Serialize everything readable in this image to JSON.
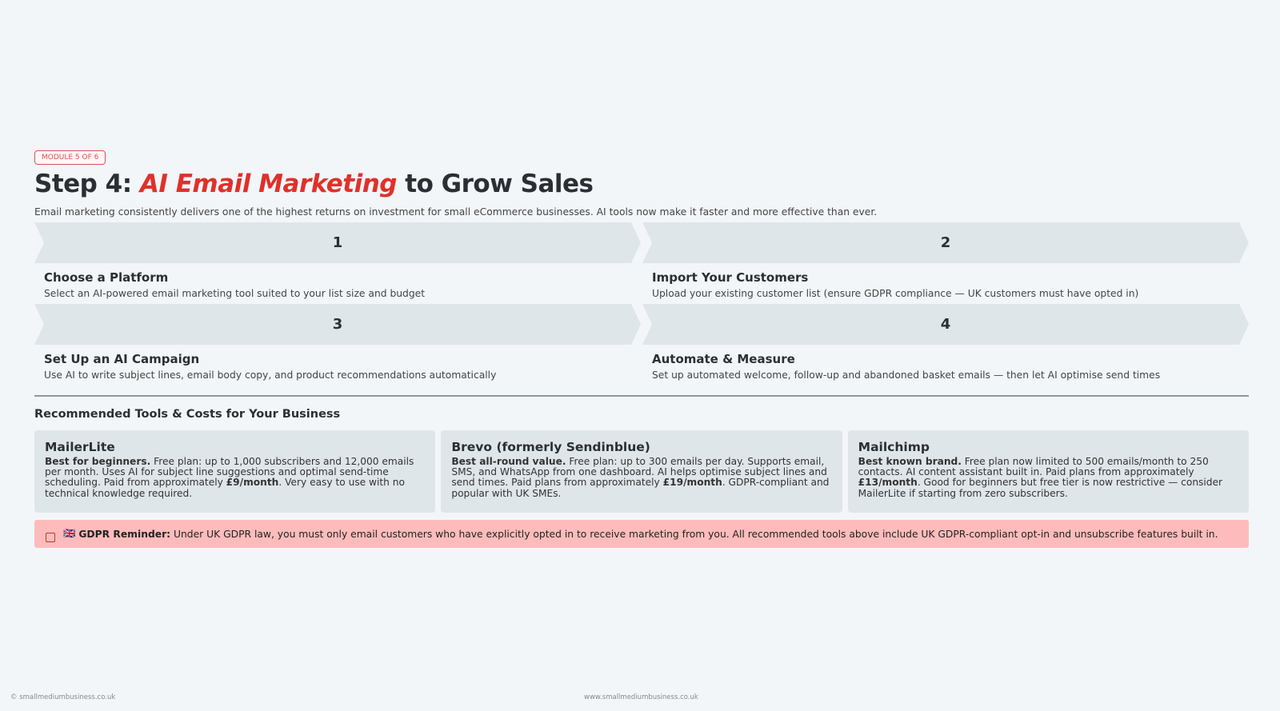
{
  "badge": "MODULE 5 OF 6",
  "title": {
    "prefix": "Step 4: ",
    "highlight": "AI Email Marketing",
    "suffix": " to Grow Sales"
  },
  "subtitle": "Email marketing consistently delivers one of the highest returns on investment for small eCommerce businesses. AI tools now make it faster and more effective than ever.",
  "steps": [
    {
      "number": "1",
      "title": "Choose a Platform",
      "desc": "Select an AI-powered email marketing tool suited to your list size and budget"
    },
    {
      "number": "2",
      "title": "Import Your Customers",
      "desc": "Upload your existing customer list (ensure GDPR compliance — UK customers must have opted in)"
    },
    {
      "number": "3",
      "title": "Set Up an AI Campaign",
      "desc": "Use AI to write subject lines, email body copy, and product recommendations automatically"
    },
    {
      "number": "4",
      "title": "Automate & Measure",
      "desc": "Set up automated welcome, follow-up and abandoned basket emails — then let AI optimise send times"
    }
  ],
  "tools_heading": "Recommended Tools & Costs for Your Business",
  "tools": [
    {
      "name": "MailerLite",
      "lead": "Best for beginners.",
      "text1": " Free plan: up to 1,000 subscribers and 12,000 emails per month. Uses AI for subject line suggestions and optimal send-time scheduling. Paid from approximately ",
      "price": "£9/month",
      "text2": ". Very easy to use with no technical knowledge required."
    },
    {
      "name": "Brevo (formerly Sendinblue)",
      "lead": "Best all-round value.",
      "text1": " Free plan: up to 300 emails per day. Supports email, SMS, and WhatsApp from one dashboard. AI helps optimise subject lines and send times. Paid plans from approximately ",
      "price": "£19/month",
      "text2": ". GDPR-compliant and popular with UK SMEs."
    },
    {
      "name": "Mailchimp",
      "lead": "Best known brand.",
      "text1": " Free plan now limited to 500 emails/month to 250 contacts. AI content assistant built in. Paid plans from approximately ",
      "price": "£13/month",
      "text2": ". Good for beginners but free tier is now restrictive — consider MailerLite if starting from zero subscribers."
    }
  ],
  "gdpr": {
    "flag": "🇬🇧",
    "label": "GDPR Reminder:",
    "text": " Under UK GDPR law, you must only email customers who have explicitly opted in to receive marketing from you. All recommended tools above include UK GDPR-compliant opt-in and unsubscribe features built in."
  },
  "footer": {
    "left": "© smallmediumbusiness.co.uk",
    "center": "www.smallmediumbusiness.co.uk"
  },
  "colors": {
    "accent": "#e1302a",
    "chevron": "#dfe6ea",
    "gdpr_bg": "#fdbcbb"
  }
}
